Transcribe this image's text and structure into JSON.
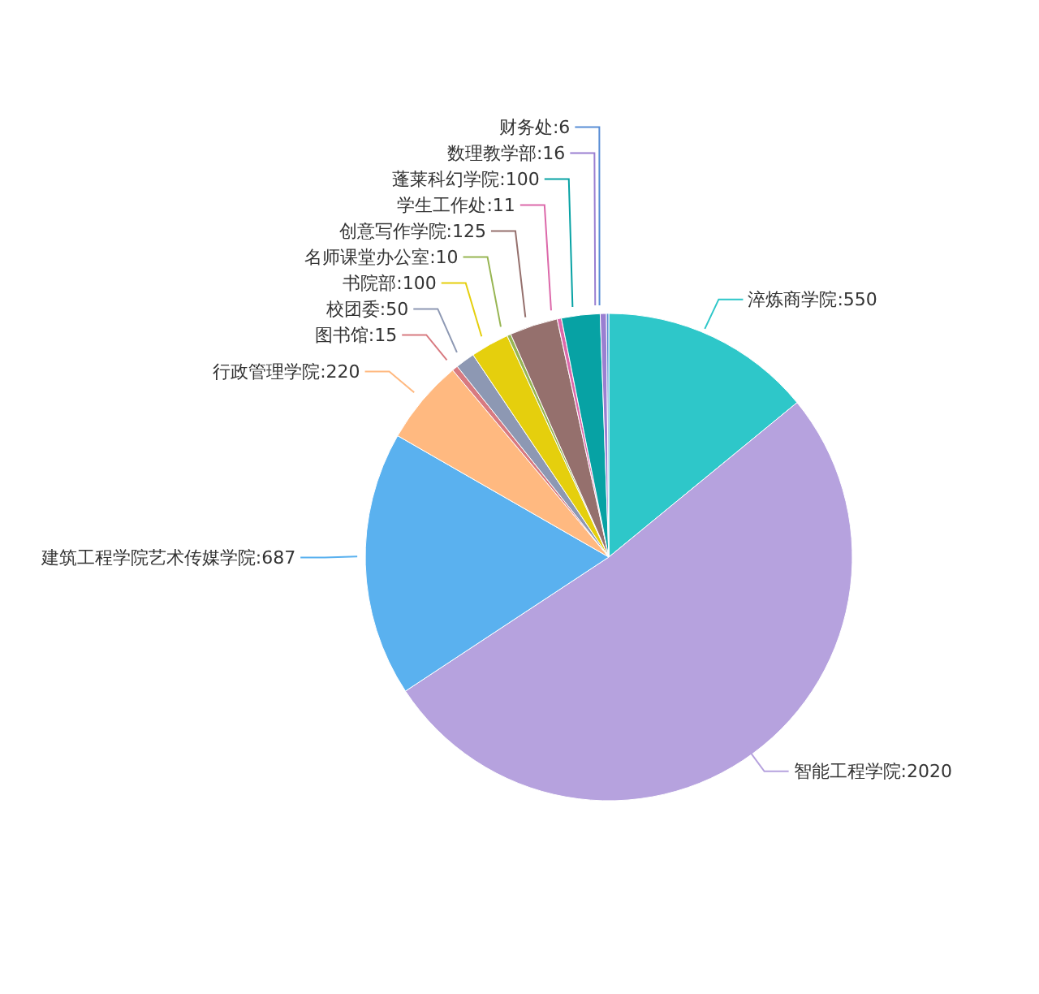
{
  "chart_data": {
    "type": "pie",
    "categories": [
      "淬炼商学院",
      "智能工程学院",
      "建筑工程学院艺术传媒学院",
      "行政管理学院",
      "图书馆",
      "校团委",
      "书院部",
      "名师课堂办公室",
      "创意写作学院",
      "学生工作处",
      "蓬莱科幻学院",
      "数理教学部",
      "财务处"
    ],
    "values": [
      550,
      2020,
      687,
      220,
      15,
      50,
      100,
      10,
      125,
      11,
      100,
      16,
      6
    ],
    "value_labels": [
      ":550",
      ":2020",
      ":687",
      ":220",
      ":15",
      ":50",
      ":100",
      ":10",
      ":125",
      ":11",
      ":100",
      ":16",
      ":6"
    ],
    "colors": [
      "#2ec7c9",
      "#b6a2de",
      "#5ab1ef",
      "#ffb980",
      "#d87a80",
      "#8d98b3",
      "#e5cf0d",
      "#97b552",
      "#95706d",
      "#dc69aa",
      "#07a2a4",
      "#9a7fd1",
      "#588dd5"
    ]
  }
}
